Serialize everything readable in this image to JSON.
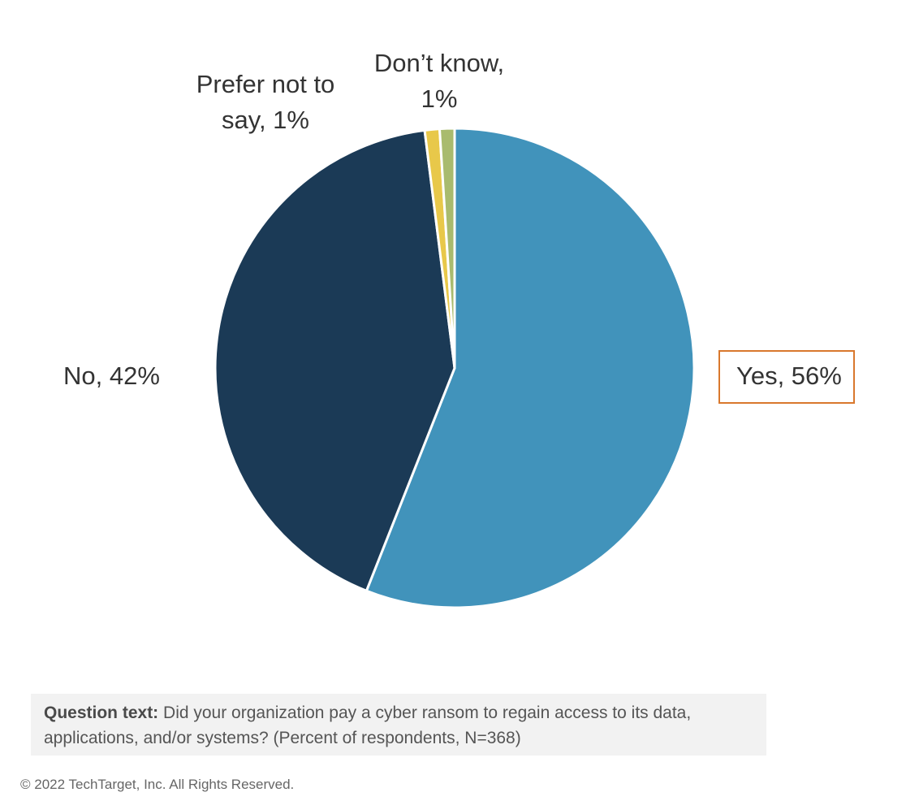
{
  "chart_data": {
    "type": "pie",
    "title": "",
    "slices": [
      {
        "label": "Yes",
        "value": 56,
        "display": "Yes, 56%",
        "color": "#4193bb"
      },
      {
        "label": "No",
        "value": 42,
        "display": "No, 42%",
        "color": "#1b3a56"
      },
      {
        "label": "Prefer not to say",
        "value": 1,
        "display_line1": "Prefer not to",
        "display_line2": "say, 1%",
        "color": "#e8c84a"
      },
      {
        "label": "Don’t know",
        "value": 1,
        "display_line1": "Don’t know,",
        "display_line2": "1%",
        "color": "#a9bb6e"
      }
    ],
    "highlight_color": "#d9782d"
  },
  "note": {
    "label": "Question text:",
    "text": " Did your organization pay a cyber ransom to regain access to its data, applications, and/or systems? (Percent of respondents, N=368)"
  },
  "footer": {
    "copyright": "© 2022 TechTarget, Inc. All Rights Reserved."
  }
}
